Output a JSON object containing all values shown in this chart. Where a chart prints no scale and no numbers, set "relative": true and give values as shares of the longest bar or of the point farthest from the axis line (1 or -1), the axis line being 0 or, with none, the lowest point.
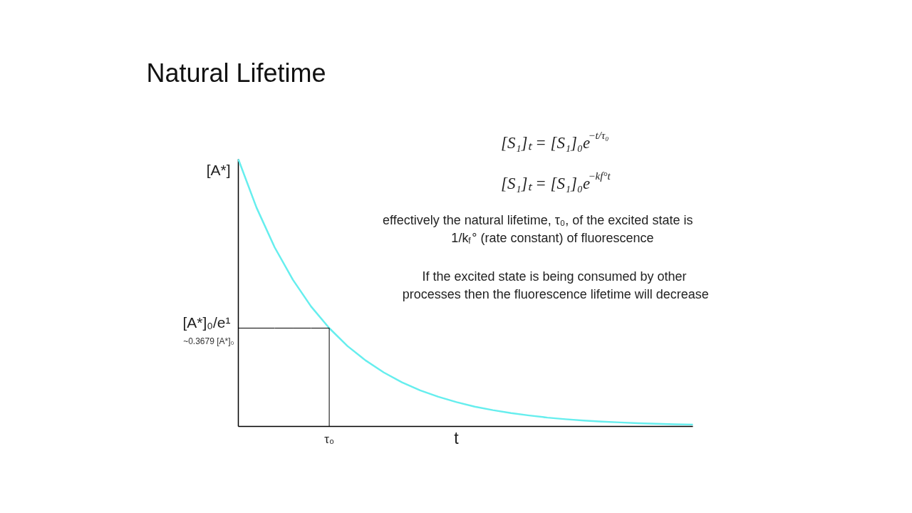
{
  "chart_data": {
    "type": "line",
    "title": "Natural Lifetime",
    "xlabel": "t",
    "relative": true,
    "categories": [
      null,
      null,
      null,
      null,
      null,
      null,
      null,
      null,
      null,
      null,
      null,
      null,
      null,
      null,
      null,
      null,
      null,
      null,
      null,
      null,
      null,
      null,
      null,
      null,
      null,
      null
    ],
    "series": [
      {
        "color": "#66eeee",
        "values": [
          1,
          0.819,
          0.67,
          0.549,
          0.449,
          0.368,
          0.301,
          0.247,
          0.202,
          0.165,
          0.135,
          0.111,
          0.091,
          0.074,
          0.061,
          0.05,
          0.041,
          0.033,
          0.027,
          0.022,
          0.018,
          0.015,
          0.012,
          0.01,
          0.008,
          0.007
        ]
      },
      {
        "type": "line",
        "color": "#000000",
        "values": [
          0.368,
          0.368,
          0.368,
          0.368,
          0.368,
          0.368,
          null,
          null,
          null,
          null,
          null,
          null,
          null,
          null,
          null,
          null,
          null,
          null,
          null,
          null,
          null,
          null,
          null,
          null,
          null,
          null
        ]
      }
    ],
    "annotations": [
      "[S₁]ₜ = [S₁]₀e$^{−t/τ₀}$",
      "[S₁]ₜ = [S₁]₀e$^{−kf°t}$",
      "effectively the natural lifetime, τ₀, of the excited state is\n1/k$_{f}$° (rate constant) of fluorescence",
      "If the excited state is being consumed by other\nprocesses then the fluorescence lifetime will decrease",
      "[A*]",
      "[A*]₀/e¹",
      "~0.3679 [A*]₀",
      "τ₀"
    ]
  }
}
